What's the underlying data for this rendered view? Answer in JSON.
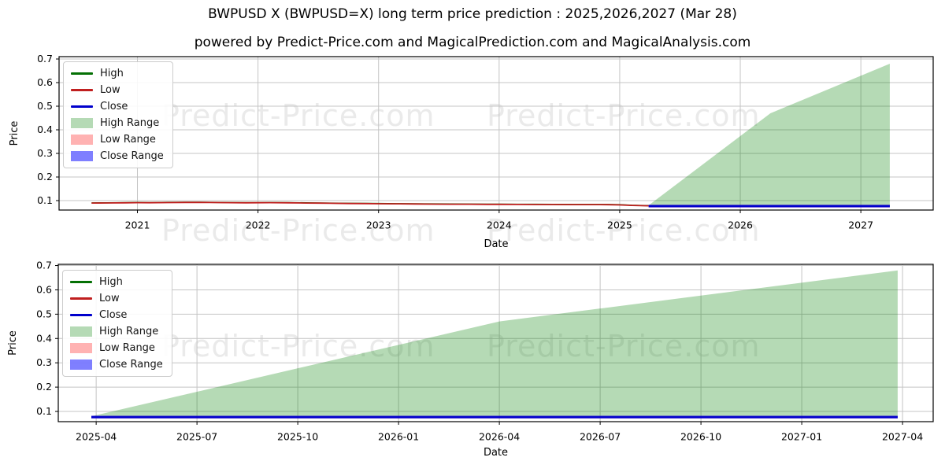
{
  "page": {
    "title": "BWPUSD X (BWPUSD=X) long term price prediction : 2025,2026,2027 (Mar 28)",
    "subtitle": "powered by Predict-Price.com and MagicalPrediction.com and MagicalAnalysis.com",
    "watermark": "Predict-Price.com"
  },
  "colors": {
    "high_line": "#047004",
    "low_line": "#c01f1f",
    "close_line": "#0000cc",
    "high_range_fill": "rgba(0,128,0,0.29)",
    "low_range_fill": "rgba(255,0,0,0.30)",
    "close_range_fill": "rgba(0,0,255,0.50)",
    "grid": "#c4c4c4",
    "spine": "#000000",
    "tick_text": "#000000"
  },
  "legend": {
    "items": [
      {
        "label": "High",
        "swatch": "line",
        "color_key": "high_line"
      },
      {
        "label": "Low",
        "swatch": "line",
        "color_key": "low_line"
      },
      {
        "label": "Close",
        "swatch": "line",
        "color_key": "close_line"
      },
      {
        "label": "High Range",
        "swatch": "patch",
        "color_key": "high_range_fill"
      },
      {
        "label": "Low Range",
        "swatch": "patch",
        "color_key": "low_range_fill"
      },
      {
        "label": "Close Range",
        "swatch": "patch",
        "color_key": "close_range_fill"
      }
    ]
  },
  "chart_data": [
    {
      "type": "area",
      "name": "long-term-history-and-forecast",
      "xlabel": "Date",
      "ylabel": "Price",
      "xlim": [
        2020.35,
        2027.6
      ],
      "ylim": [
        0.06,
        0.71
      ],
      "grid": true,
      "legend_position": "upper left",
      "xticks": [
        {
          "v": 2021,
          "label": "2021"
        },
        {
          "v": 2022,
          "label": "2022"
        },
        {
          "v": 2023,
          "label": "2023"
        },
        {
          "v": 2024,
          "label": "2024"
        },
        {
          "v": 2025,
          "label": "2025"
        },
        {
          "v": 2026,
          "label": "2026"
        },
        {
          "v": 2027,
          "label": "2027"
        }
      ],
      "yticks": [
        0.1,
        0.2,
        0.3,
        0.4,
        0.5,
        0.6,
        0.7
      ],
      "series": [
        {
          "name": "High",
          "role": "line",
          "color_key": "high_line",
          "width": 1.6,
          "points": [
            [
              2020.62,
              0.0903
            ],
            [
              2020.75,
              0.0908
            ],
            [
              2020.9,
              0.0916
            ],
            [
              2021.0,
              0.0923
            ],
            [
              2021.1,
              0.0918
            ],
            [
              2021.25,
              0.0926
            ],
            [
              2021.4,
              0.0931
            ],
            [
              2021.5,
              0.0933
            ],
            [
              2021.6,
              0.0927
            ],
            [
              2021.75,
              0.0921
            ],
            [
              2021.9,
              0.0915
            ],
            [
              2022.0,
              0.0918
            ],
            [
              2022.1,
              0.092
            ],
            [
              2022.25,
              0.0914
            ],
            [
              2022.4,
              0.0906
            ],
            [
              2022.5,
              0.0901
            ],
            [
              2022.6,
              0.0893
            ],
            [
              2022.75,
              0.0886
            ],
            [
              2022.9,
              0.088
            ],
            [
              2023.0,
              0.0876
            ],
            [
              2023.15,
              0.0871
            ],
            [
              2023.3,
              0.0864
            ],
            [
              2023.45,
              0.0859
            ],
            [
              2023.6,
              0.0856
            ],
            [
              2023.75,
              0.0853
            ],
            [
              2023.9,
              0.0849
            ],
            [
              2024.0,
              0.0847
            ],
            [
              2024.15,
              0.0844
            ],
            [
              2024.3,
              0.0842
            ],
            [
              2024.45,
              0.084
            ],
            [
              2024.6,
              0.0838
            ],
            [
              2024.75,
              0.0837
            ],
            [
              2024.9,
              0.0836
            ],
            [
              2025.0,
              0.0826
            ],
            [
              2025.1,
              0.0803
            ],
            [
              2025.24,
              0.0788
            ]
          ]
        },
        {
          "name": "Low",
          "role": "line",
          "color_key": "low_line",
          "width": 1.8,
          "points": [
            [
              2020.62,
              0.0895
            ],
            [
              2020.75,
              0.09
            ],
            [
              2020.9,
              0.0908
            ],
            [
              2021.0,
              0.0915
            ],
            [
              2021.1,
              0.091
            ],
            [
              2021.25,
              0.0918
            ],
            [
              2021.4,
              0.0923
            ],
            [
              2021.5,
              0.0925
            ],
            [
              2021.6,
              0.0919
            ],
            [
              2021.75,
              0.0913
            ],
            [
              2021.9,
              0.0907
            ],
            [
              2022.0,
              0.091
            ],
            [
              2022.1,
              0.0912
            ],
            [
              2022.25,
              0.0906
            ],
            [
              2022.4,
              0.0898
            ],
            [
              2022.5,
              0.0893
            ],
            [
              2022.6,
              0.0885
            ],
            [
              2022.75,
              0.0878
            ],
            [
              2022.9,
              0.0872
            ],
            [
              2023.0,
              0.0868
            ],
            [
              2023.15,
              0.0863
            ],
            [
              2023.3,
              0.0856
            ],
            [
              2023.45,
              0.0851
            ],
            [
              2023.6,
              0.0848
            ],
            [
              2023.75,
              0.0845
            ],
            [
              2023.9,
              0.0841
            ],
            [
              2024.0,
              0.0839
            ],
            [
              2024.15,
              0.0836
            ],
            [
              2024.3,
              0.0834
            ],
            [
              2024.45,
              0.0832
            ],
            [
              2024.6,
              0.083
            ],
            [
              2024.75,
              0.0829
            ],
            [
              2024.9,
              0.0828
            ],
            [
              2025.0,
              0.0818
            ],
            [
              2025.1,
              0.0795
            ],
            [
              2025.24,
              0.078
            ]
          ]
        },
        {
          "name": "High Range",
          "role": "area",
          "color_key": "high_range_fill",
          "x": [
            2025.24,
            2026.25,
            2027.24
          ],
          "y_top": [
            0.08,
            0.47,
            0.68
          ],
          "y_bottom": [
            0.077,
            0.077,
            0.077
          ]
        },
        {
          "name": "Low Range",
          "role": "area",
          "color_key": "low_range_fill",
          "x": [
            2025.24,
            2027.24
          ],
          "y_top": [
            0.082,
            0.082
          ],
          "y_bottom": [
            0.071,
            0.071
          ]
        },
        {
          "name": "Close Range",
          "role": "area",
          "color_key": "close_range_fill",
          "x": [
            2025.24,
            2027.24
          ],
          "y_top": [
            0.083,
            0.083
          ],
          "y_bottom": [
            0.071,
            0.071
          ]
        },
        {
          "name": "Close",
          "role": "line",
          "color_key": "close_line",
          "width": 2.4,
          "points": [
            [
              2025.24,
              0.0765
            ],
            [
              2027.24,
              0.0765
            ]
          ]
        }
      ]
    },
    {
      "type": "area",
      "name": "forecast-detail-2025-2027",
      "xlabel": "Date",
      "ylabel": "Price",
      "xlim": [
        2025.156,
        2027.326
      ],
      "ylim": [
        0.058,
        0.705
      ],
      "grid": true,
      "legend_position": "upper left",
      "xticks": [
        {
          "v": 2025.25,
          "label": "2025-04"
        },
        {
          "v": 2025.5,
          "label": "2025-07"
        },
        {
          "v": 2025.75,
          "label": "2025-10"
        },
        {
          "v": 2026.0,
          "label": "2026-01"
        },
        {
          "v": 2026.25,
          "label": "2026-04"
        },
        {
          "v": 2026.5,
          "label": "2026-07"
        },
        {
          "v": 2026.75,
          "label": "2026-10"
        },
        {
          "v": 2027.0,
          "label": "2027-01"
        },
        {
          "v": 2027.25,
          "label": "2027-04"
        }
      ],
      "yticks": [
        0.1,
        0.2,
        0.3,
        0.4,
        0.5,
        0.6,
        0.7
      ],
      "series": [
        {
          "name": "High Range",
          "role": "area",
          "color_key": "high_range_fill",
          "x": [
            2025.238,
            2026.25,
            2027.238
          ],
          "y_top": [
            0.08,
            0.47,
            0.68
          ],
          "y_bottom": [
            0.077,
            0.077,
            0.077
          ]
        },
        {
          "name": "Low Range",
          "role": "area",
          "color_key": "low_range_fill",
          "x": [
            2025.238,
            2027.238
          ],
          "y_top": [
            0.082,
            0.082
          ],
          "y_bottom": [
            0.071,
            0.071
          ]
        },
        {
          "name": "Close Range",
          "role": "area",
          "color_key": "close_range_fill",
          "x": [
            2025.238,
            2027.238
          ],
          "y_top": [
            0.083,
            0.083
          ],
          "y_bottom": [
            0.071,
            0.071
          ]
        },
        {
          "name": "Close",
          "role": "line",
          "color_key": "close_line",
          "width": 2.4,
          "points": [
            [
              2025.238,
              0.0765
            ],
            [
              2027.238,
              0.0765
            ]
          ]
        }
      ]
    }
  ]
}
